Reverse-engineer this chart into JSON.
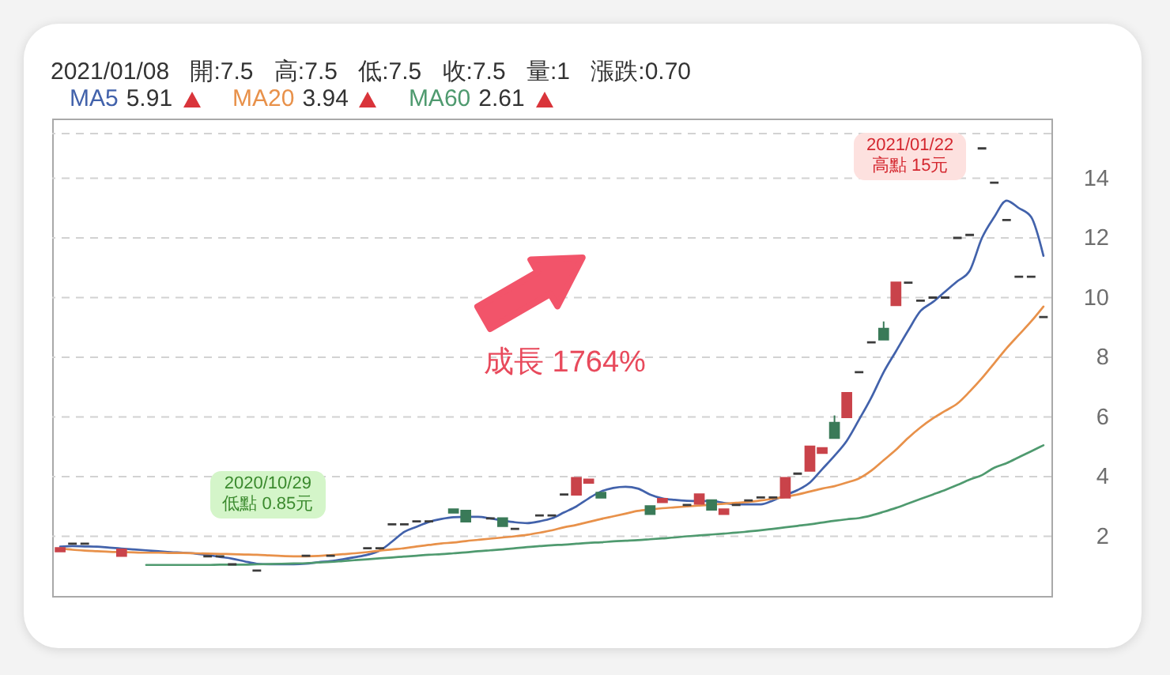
{
  "chart_data": {
    "type": "candlestick",
    "title": "2021/01/08 開:7.5 高:7.5 低:7.5 收:7.5 量:1 漲跌:0.70",
    "categories": [
      null,
      null,
      null,
      null,
      null,
      null,
      null,
      null,
      null,
      null,
      null,
      null,
      null,
      null,
      null,
      null,
      null,
      null,
      null,
      null,
      null,
      null,
      null,
      null,
      null,
      null,
      null,
      null,
      null,
      null,
      null,
      null,
      null,
      null,
      null,
      null,
      null,
      null,
      null,
      null,
      null,
      null,
      null,
      null,
      null,
      null,
      null,
      null,
      null,
      null,
      null,
      null,
      null,
      null,
      null,
      null,
      null,
      null,
      null,
      null,
      null,
      null,
      null,
      null,
      null,
      null,
      null,
      null,
      null,
      null,
      null,
      null,
      null,
      null,
      null,
      null,
      null,
      null,
      null,
      null,
      null
    ],
    "ohlc": [
      [
        1.5,
        1.6,
        1.5,
        1.6
      ],
      [
        1.75,
        1.75,
        1.75,
        1.75
      ],
      [
        1.75,
        1.75,
        1.75,
        1.75
      ],
      null,
      null,
      [
        1.35,
        1.55,
        1.35,
        1.55
      ],
      null,
      null,
      null,
      null,
      null,
      null,
      [
        1.33,
        1.33,
        1.33,
        1.33
      ],
      [
        1.33,
        1.33,
        1.33,
        1.33
      ],
      [
        1.06,
        1.06,
        1.06,
        1.06
      ],
      null,
      [
        0.85,
        0.85,
        0.85,
        0.85
      ],
      null,
      null,
      null,
      [
        1.35,
        1.35,
        1.35,
        1.35
      ],
      null,
      [
        1.35,
        1.35,
        1.35,
        1.35
      ],
      null,
      null,
      [
        1.6,
        1.6,
        1.6,
        1.6
      ],
      [
        1.6,
        1.6,
        1.6,
        1.6
      ],
      [
        2.4,
        2.4,
        2.4,
        2.4
      ],
      [
        2.4,
        2.4,
        2.4,
        2.4
      ],
      [
        2.5,
        2.5,
        2.5,
        2.5
      ],
      [
        2.5,
        2.5,
        2.5,
        2.5
      ],
      null,
      [
        2.9,
        2.9,
        2.8,
        2.8
      ],
      [
        2.85,
        2.85,
        2.5,
        2.5
      ],
      null,
      [
        2.6,
        2.6,
        2.6,
        2.6
      ],
      [
        2.6,
        2.6,
        2.35,
        2.35
      ],
      [
        2.25,
        2.25,
        2.25,
        2.25
      ],
      null,
      [
        2.7,
        2.7,
        2.7,
        2.7
      ],
      [
        2.7,
        2.7,
        2.7,
        2.7
      ],
      [
        3.4,
        3.4,
        3.4,
        3.4
      ],
      [
        3.4,
        3.95,
        3.4,
        3.95
      ],
      [
        3.8,
        3.9,
        3.8,
        3.9
      ],
      [
        3.45,
        3.45,
        3.3,
        3.3
      ],
      null,
      null,
      null,
      [
        3.0,
        3.0,
        2.75,
        2.75
      ],
      [
        3.15,
        3.25,
        3.15,
        3.25
      ],
      null,
      [
        3.05,
        3.05,
        3.05,
        3.05
      ],
      [
        3.1,
        3.4,
        3.1,
        3.4
      ],
      [
        3.2,
        3.2,
        2.9,
        2.9
      ],
      [
        2.75,
        2.9,
        2.75,
        2.9
      ],
      [
        3.05,
        3.05,
        3.05,
        3.05
      ],
      [
        3.2,
        3.2,
        3.2,
        3.2
      ],
      [
        3.3,
        3.3,
        3.3,
        3.3
      ],
      [
        3.3,
        3.3,
        3.3,
        3.3
      ],
      [
        3.3,
        3.95,
        3.3,
        3.95
      ],
      [
        4.1,
        4.1,
        4.1,
        4.1
      ],
      [
        4.2,
        5.0,
        4.2,
        5.0
      ],
      [
        4.8,
        4.95,
        4.8,
        4.95
      ],
      [
        5.8,
        6.05,
        5.3,
        5.3
      ],
      [
        6.0,
        6.8,
        6.0,
        6.8
      ],
      [
        7.5,
        7.5,
        7.5,
        7.5
      ],
      [
        8.5,
        8.5,
        8.5,
        8.5
      ],
      [
        8.95,
        9.2,
        8.6,
        8.6
      ],
      [
        9.75,
        10.5,
        9.75,
        10.5
      ],
      [
        10.5,
        10.5,
        10.5,
        10.5
      ],
      [
        9.9,
        9.9,
        9.9,
        9.9
      ],
      [
        10,
        10,
        10,
        10
      ],
      [
        10,
        10,
        10,
        10
      ],
      [
        12,
        12,
        12,
        12
      ],
      [
        12.1,
        12.1,
        12.1,
        12.1
      ],
      [
        15,
        15,
        15,
        15
      ],
      [
        13.85,
        13.85,
        13.85,
        13.85
      ],
      [
        12.6,
        12.6,
        12.6,
        12.6
      ],
      [
        10.7,
        10.7,
        10.7,
        10.7
      ],
      [
        10.7,
        10.7,
        10.7,
        10.7
      ],
      [
        9.35,
        9.35,
        9.35,
        9.35
      ]
    ],
    "colors": [
      "#c9434a",
      "#3c3c3c",
      "#3c3c3c",
      null,
      null,
      "#c9434a",
      null,
      null,
      null,
      null,
      null,
      null,
      "#3c3c3c",
      "#3c3c3c",
      "#3c3c3c",
      null,
      "#3c3c3c",
      null,
      null,
      null,
      "#3c3c3c",
      null,
      "#3c3c3c",
      null,
      null,
      "#3c3c3c",
      "#3c3c3c",
      "#3c3c3c",
      "#3c3c3c",
      "#3c3c3c",
      "#3c3c3c",
      null,
      "#3a7a58",
      "#3a7a58",
      null,
      "#3c3c3c",
      "#3a7a58",
      "#3c3c3c",
      null,
      "#3c3c3c",
      "#3c3c3c",
      "#3c3c3c",
      "#c9434a",
      "#c9434a",
      "#3a7a58",
      null,
      null,
      null,
      "#3a7a58",
      "#c9434a",
      null,
      "#3c3c3c",
      "#c9434a",
      "#3a7a58",
      "#c9434a",
      "#3c3c3c",
      "#3c3c3c",
      "#3c3c3c",
      "#3c3c3c",
      "#c9434a",
      "#3c3c3c",
      "#c9434a",
      "#c9434a",
      "#3a7a58",
      "#c9434a",
      "#3c3c3c",
      "#3c3c3c",
      "#3a7a58",
      "#c9434a",
      "#3c3c3c",
      "#3c3c3c",
      "#3c3c3c",
      "#3c3c3c",
      "#3c3c3c",
      "#3c3c3c",
      "#3c3c3c",
      "#3c3c3c",
      "#3c3c3c",
      "#3c3c3c",
      "#3c3c3c",
      "#3c3c3c"
    ],
    "series": [
      {
        "name": "MA5",
        "type": "line",
        "color": "#4262ab",
        "values": [
          1.65,
          1.67,
          1.66,
          1.65,
          1.62,
          1.59,
          1.56,
          1.53,
          1.5,
          1.47,
          1.45,
          1.42,
          1.37,
          1.31,
          1.25,
          1.16,
          1.08,
          1.06,
          1.06,
          1.06,
          1.08,
          1.13,
          1.17,
          1.23,
          1.3,
          1.38,
          1.52,
          1.82,
          2.15,
          2.32,
          2.48,
          2.58,
          2.64,
          2.65,
          2.65,
          2.6,
          2.53,
          2.47,
          2.44,
          2.5,
          2.6,
          2.8,
          3.0,
          3.27,
          3.5,
          3.62,
          3.66,
          3.6,
          3.4,
          3.27,
          3.22,
          3.19,
          3.18,
          3.18,
          3.12,
          3.07,
          3.07,
          3.07,
          3.2,
          3.38,
          3.55,
          3.8,
          4.25,
          4.7,
          5.2,
          5.91,
          6.65,
          7.5,
          8.2,
          8.9,
          9.55,
          9.85,
          10.2,
          10.55,
          10.9,
          12.0,
          12.7,
          13.25,
          13.0,
          12.7,
          11.4
        ]
      },
      {
        "name": "MA20",
        "type": "line",
        "color": "#e8914a",
        "values": [
          1.6,
          1.55,
          1.52,
          1.5,
          1.48,
          1.47,
          1.46,
          1.45,
          1.45,
          1.44,
          1.44,
          1.43,
          1.42,
          1.41,
          1.4,
          1.39,
          1.38,
          1.36,
          1.34,
          1.33,
          1.33,
          1.34,
          1.37,
          1.4,
          1.43,
          1.47,
          1.52,
          1.56,
          1.6,
          1.66,
          1.71,
          1.76,
          1.79,
          1.84,
          1.88,
          1.92,
          1.96,
          2.0,
          2.05,
          2.12,
          2.2,
          2.3,
          2.38,
          2.48,
          2.58,
          2.67,
          2.76,
          2.85,
          2.9,
          2.94,
          2.97,
          3.0,
          3.03,
          3.06,
          3.09,
          3.12,
          3.15,
          3.2,
          3.26,
          3.32,
          3.4,
          3.5,
          3.6,
          3.68,
          3.8,
          3.94,
          4.2,
          4.55,
          4.9,
          5.3,
          5.65,
          5.95,
          6.2,
          6.45,
          6.85,
          7.3,
          7.8,
          8.3,
          8.75,
          9.2,
          9.7
        ]
      },
      {
        "name": "MA60",
        "type": "line",
        "color": "#4f9a6f",
        "values": [
          null,
          null,
          null,
          null,
          null,
          null,
          null,
          1.04,
          1.04,
          1.04,
          1.04,
          1.04,
          1.04,
          1.05,
          1.05,
          1.05,
          1.06,
          1.07,
          1.08,
          1.09,
          1.1,
          1.12,
          1.14,
          1.17,
          1.2,
          1.23,
          1.26,
          1.29,
          1.32,
          1.35,
          1.38,
          1.4,
          1.43,
          1.46,
          1.5,
          1.53,
          1.56,
          1.6,
          1.64,
          1.67,
          1.7,
          1.72,
          1.75,
          1.78,
          1.8,
          1.83,
          1.85,
          1.87,
          1.9,
          1.93,
          1.96,
          2.0,
          2.03,
          2.06,
          2.09,
          2.12,
          2.16,
          2.2,
          2.25,
          2.3,
          2.35,
          2.4,
          2.46,
          2.52,
          2.57,
          2.61,
          2.7,
          2.82,
          2.95,
          3.1,
          3.25,
          3.4,
          3.55,
          3.72,
          3.9,
          4.05,
          4.3,
          4.45,
          4.65,
          4.85,
          5.05
        ]
      }
    ],
    "ylim": [
      0,
      16
    ],
    "yticks": [
      2,
      4,
      6,
      8,
      10,
      12,
      14,
      {
        "value": 15.5,
        "label": null
      }
    ],
    "grid": "y",
    "legend": "top left",
    "annotations": [
      "5.91",
      "3.94",
      "2.61",
      "2020/10/29\n低點 0.85元",
      "2021/01/22\n高點 15元",
      "成長 1764%"
    ]
  }
}
